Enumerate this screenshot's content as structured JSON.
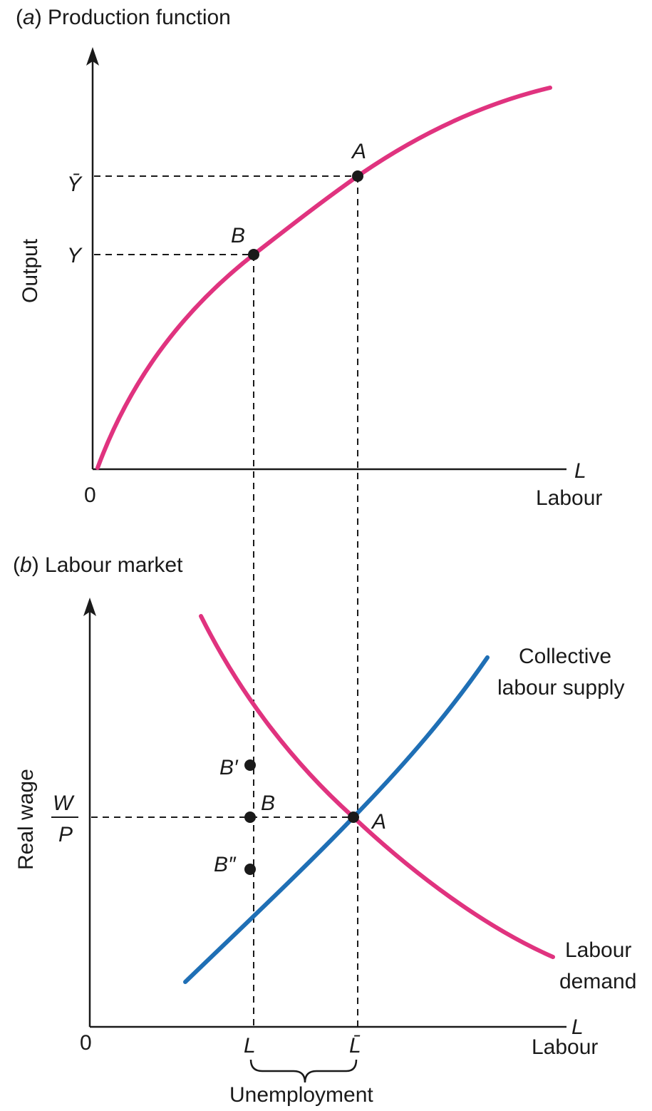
{
  "panel_a": {
    "letter": "a",
    "title": "Production function",
    "y_axis_label": "Output",
    "x_axis_symbol": "L",
    "x_axis_label": "Labour",
    "origin": "0",
    "tick_ybar": "Ȳ",
    "tick_y": "Y",
    "point_a": "A",
    "point_b": "B"
  },
  "panel_b": {
    "letter": "b",
    "title": "Labour market",
    "y_axis_label": "Real wage",
    "wage_num": "W",
    "wage_den": "P",
    "x_axis_symbol": "L",
    "x_axis_label": "Labour",
    "origin": "0",
    "point_a": "A",
    "point_b": "B",
    "point_b_prime": "B′",
    "point_b_double": "B″",
    "tick_l": "L",
    "tick_lbar": "L̄",
    "supply_label_1": "Collective",
    "supply_label_2": "labour supply",
    "demand_label_1": "Labour",
    "demand_label_2": "demand",
    "brace_label": "Unemployment"
  },
  "colors": {
    "production_curve": "#e0337f",
    "labour_demand": "#e0337f",
    "labour_supply": "#1f6fb5"
  }
}
